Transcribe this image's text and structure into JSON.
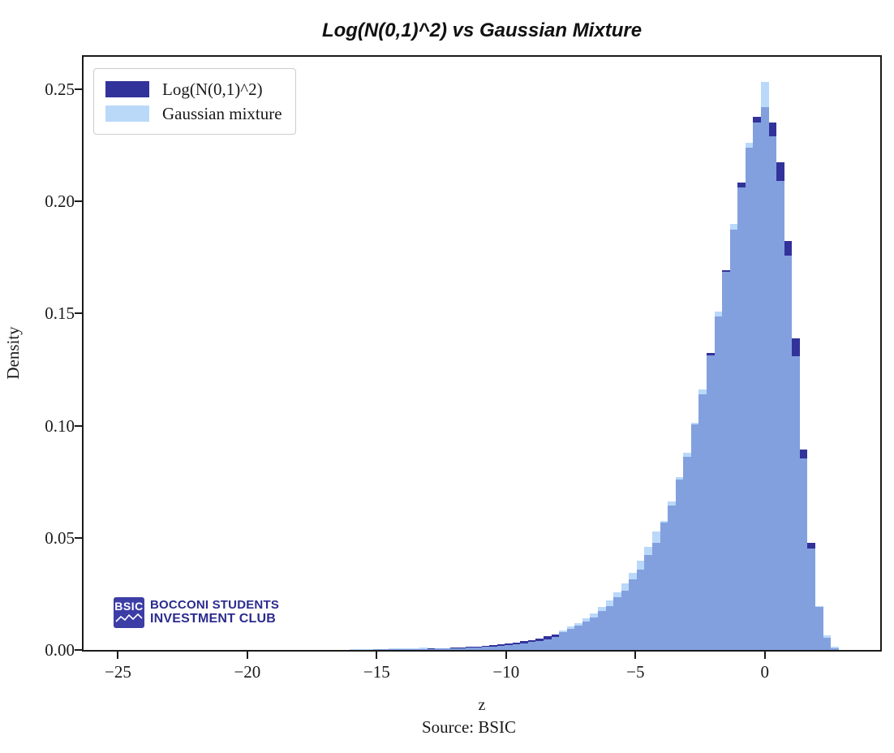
{
  "figure": {
    "title": "Log(N(0,1)^2) vs Gaussian Mixture",
    "source": "Source: BSIC"
  },
  "axes": {
    "xlabel": "z",
    "ylabel": "Density",
    "xlim": [
      -26.33,
      4.46
    ],
    "ylim": [
      0,
      0.2644
    ],
    "x_tick_values": [
      -25,
      -20,
      -15,
      -10,
      -5,
      0
    ],
    "x_tick_labels": [
      "−25",
      "−20",
      "−15",
      "−10",
      "−5",
      "0"
    ],
    "y_tick_values": [
      0.0,
      0.05,
      0.1,
      0.15,
      0.2,
      0.25
    ],
    "y_tick_labels": [
      "0.00",
      "0.05",
      "0.10",
      "0.15",
      "0.20",
      "0.25"
    ]
  },
  "legend": {
    "items": [
      {
        "label": "Log(N(0,1)^2)",
        "color": "#32329B"
      },
      {
        "label": "Gaussian mixture",
        "color": "#BAD9F8"
      }
    ]
  },
  "logo": {
    "badge": "BSIC",
    "line1": "BOCCONI STUDENTS",
    "line2": "INVESTMENT CLUB"
  },
  "colors": {
    "dark_series": "#32329B",
    "light_series_on_white": "#BAD9F8",
    "light_series_fill": "rgba(160,202,247,0.73)",
    "overlap": "#82A2DE",
    "spine": "#1a1a1a",
    "logo_navy": "#2B2B8F",
    "badge_bg": "#3D3DA6"
  },
  "chart_data": {
    "type": "bar",
    "subtype": "overlaid-histogram",
    "title": "Log(N(0,1)^2) vs Gaussian Mixture",
    "xlabel": "z",
    "ylabel": "Density",
    "xlim": [
      -26.33,
      4.46
    ],
    "ylim": [
      0,
      0.2644
    ],
    "grid": false,
    "legend_position": "upper-left",
    "bin_width": 0.3,
    "bin_centers": [
      -15.9,
      -15.6,
      -15.3,
      -15.0,
      -14.7,
      -14.4,
      -14.1,
      -13.8,
      -13.5,
      -13.2,
      -12.9,
      -12.6,
      -12.3,
      -12.0,
      -11.7,
      -11.4,
      -11.1,
      -10.8,
      -10.5,
      -10.2,
      -9.9,
      -9.6,
      -9.3,
      -9.0,
      -8.7,
      -8.4,
      -8.1,
      -7.8,
      -7.5,
      -7.2,
      -6.9,
      -6.6,
      -6.3,
      -6.0,
      -5.7,
      -5.4,
      -5.1,
      -4.8,
      -4.5,
      -4.2,
      -3.9,
      -3.6,
      -3.3,
      -3.0,
      -2.7,
      -2.4,
      -2.1,
      -1.8,
      -1.5,
      -1.2,
      -0.9,
      -0.6,
      -0.3,
      0.0,
      0.3,
      0.6,
      0.9,
      1.2,
      1.5,
      1.8,
      2.1,
      2.4,
      2.7,
      3.0
    ],
    "series": [
      {
        "name": "Log(N(0,1)^2)",
        "css_fill": "#32329B",
        "values": [
          0.00012,
          0.00014,
          0.00017,
          0.00021,
          0.00027,
          0.00031,
          0.00033,
          0.00042,
          0.00049,
          0.00052,
          0.00065,
          0.00071,
          0.00088,
          0.00103,
          0.00112,
          0.00139,
          0.00152,
          0.00187,
          0.00204,
          0.00251,
          0.00276,
          0.00334,
          0.00391,
          0.00452,
          0.0051,
          0.00611,
          0.00702,
          0.00797,
          0.00952,
          0.01078,
          0.01284,
          0.0145,
          0.01739,
          0.01963,
          0.02334,
          0.02651,
          0.03142,
          0.03563,
          0.04219,
          0.04788,
          0.05667,
          0.06456,
          0.07585,
          0.08614,
          0.10057,
          0.11408,
          0.1324,
          0.14857,
          0.16921,
          0.1875,
          0.20838,
          0.22398,
          0.23781,
          0.24194,
          0.23512,
          0.21739,
          0.18214,
          0.13902,
          0.08931,
          0.04788,
          0.01904,
          0.00528,
          0.00087,
          6e-05
        ]
      },
      {
        "name": "Gaussian mixture",
        "css_fill": "rgba(160,202,247,0.73)",
        "values": [
          0.00028,
          0.00031,
          0.00035,
          0.00044,
          0.00048,
          0.00058,
          0.00066,
          0.00071,
          0.00082,
          0.00094,
          0.00052,
          0.00058,
          0.00064,
          0.00079,
          0.00086,
          0.00102,
          0.00118,
          0.00134,
          0.00161,
          0.00184,
          0.00216,
          0.00252,
          0.00296,
          0.00349,
          0.00411,
          0.00486,
          0.00574,
          0.00882,
          0.01041,
          0.01206,
          0.01419,
          0.01643,
          0.01907,
          0.02206,
          0.02564,
          0.02968,
          0.03427,
          0.03962,
          0.04608,
          0.05284,
          0.05761,
          0.0663,
          0.0769,
          0.08772,
          0.10127,
          0.11621,
          0.13116,
          0.15066,
          0.16844,
          0.18975,
          0.20627,
          0.22591,
          0.23521,
          0.25307,
          0.22911,
          0.20918,
          0.17566,
          0.13101,
          0.08543,
          0.04508,
          0.01954,
          0.00662,
          0.00158,
          0.0001
        ]
      }
    ]
  }
}
